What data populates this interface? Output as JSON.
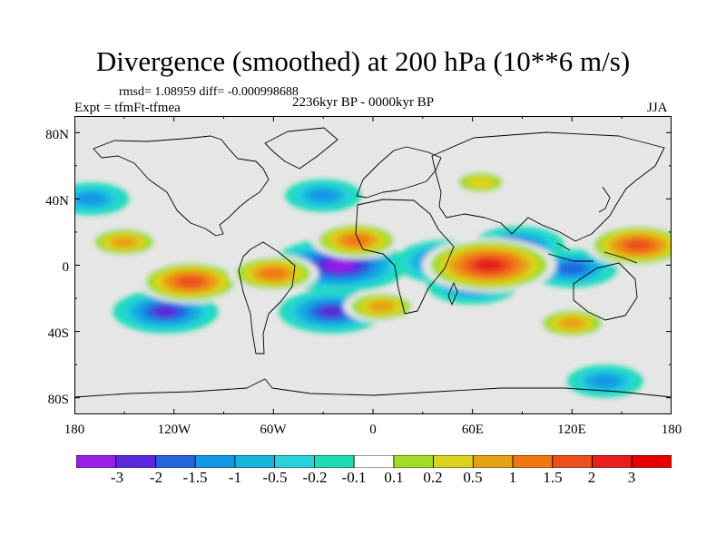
{
  "title": "Divergence (smoothed) at 200 hPa (10**6 m/s)",
  "stats": "rmsd= 1.08959 diff= -0.000998688",
  "expt": "Expt = tfmFt-tfmea",
  "period": "2236kyr BP - 0000kyr BP",
  "season": "JJA",
  "y_ticks": [
    "80N",
    "40N",
    "0",
    "40S",
    "80S"
  ],
  "x_ticks": [
    "180",
    "120W",
    "60W",
    "0",
    "60E",
    "120E",
    "180"
  ],
  "colorbar": {
    "labels": [
      "-3",
      "-2",
      "-1.5",
      "-1",
      "-0.5",
      "-0.2",
      "-0.1",
      "0.1",
      "0.2",
      "0.5",
      "1",
      "1.5",
      "2",
      "3"
    ],
    "colors": [
      "#9a1ee6",
      "#5a28dc",
      "#2464dc",
      "#1496e6",
      "#14b4dc",
      "#28d2dc",
      "#1edcb4",
      "#e6e6e6",
      "#a0dc28",
      "#dcd21e",
      "#e6a014",
      "#f07814",
      "#eb501e",
      "#e61e1e"
    ]
  },
  "map": {
    "lon_range": [
      -180,
      180
    ],
    "lat_range": [
      -90,
      90
    ],
    "background_color": "#e6e6e6",
    "anomaly_features": [
      {
        "name": "atlantic-tropical-min",
        "lon": -20,
        "lat": 0,
        "value": -3
      },
      {
        "name": "southwest-atlantic-min",
        "lon": -25,
        "lat": -28,
        "value": -2
      },
      {
        "name": "north-atlantic-min",
        "lon": -30,
        "lat": 42,
        "value": -1
      },
      {
        "name": "south-pacific-min",
        "lon": -125,
        "lat": -28,
        "value": -2
      },
      {
        "name": "north-pacific-neg",
        "lon": -170,
        "lat": 40,
        "value": -1
      },
      {
        "name": "west-indian-ocean-min",
        "lon": 45,
        "lat": 2,
        "value": -2
      },
      {
        "name": "east-africa-neg",
        "lon": 60,
        "lat": -12,
        "value": -1.5
      },
      {
        "name": "bay-of-bengal-neg",
        "lon": 88,
        "lat": 12,
        "value": -1.5
      },
      {
        "name": "maritime-continent-min",
        "lon": 120,
        "lat": -2,
        "value": -1.5
      },
      {
        "name": "southern-ocean-neg",
        "lon": 140,
        "lat": -70,
        "value": -1
      },
      {
        "name": "east-pacific-max",
        "lon": -110,
        "lat": -10,
        "value": 2
      },
      {
        "name": "south-america-pos",
        "lon": -60,
        "lat": -5,
        "value": 1.5
      },
      {
        "name": "south-atlantic-pos",
        "lon": 5,
        "lat": -25,
        "value": 1
      },
      {
        "name": "indian-ocean-max",
        "lon": 70,
        "lat": 0,
        "value": 3
      },
      {
        "name": "west-pacific-max",
        "lon": 160,
        "lat": 12,
        "value": 2
      },
      {
        "name": "australia-pos",
        "lon": 120,
        "lat": -35,
        "value": 1
      },
      {
        "name": "north-atlantic-pos",
        "lon": -10,
        "lat": 15,
        "value": 1.5
      },
      {
        "name": "tropical-north-pacific-pos",
        "lon": -150,
        "lat": 14,
        "value": 1
      },
      {
        "name": "central-asia-pos",
        "lon": 65,
        "lat": 50,
        "value": 0.5
      }
    ]
  }
}
